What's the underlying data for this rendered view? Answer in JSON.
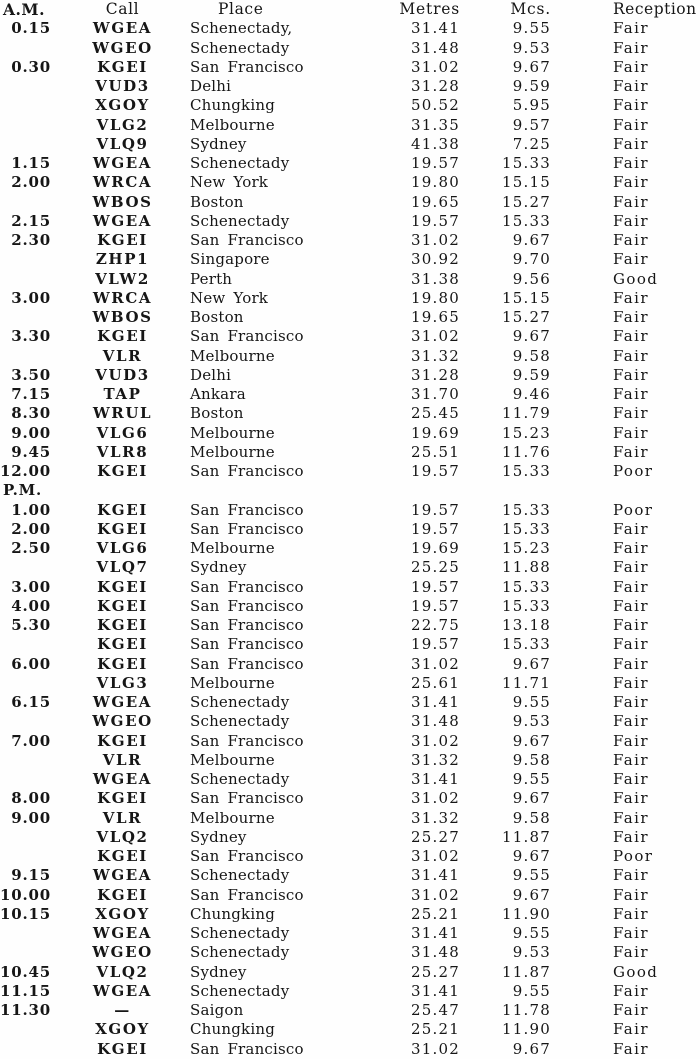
{
  "document": {
    "headers": {
      "time": "A.M.",
      "call": "Call",
      "place": "Place",
      "metres": "Metres",
      "mcs": "Mcs.",
      "reception": "Reception"
    },
    "sections": [
      {
        "label": "",
        "rows": [
          {
            "time": "0.15",
            "call": "WGEA",
            "place": "Schenectady,",
            "metres": "31.41",
            "mcs": "9.55",
            "reception": "Fair"
          },
          {
            "time": "",
            "call": "WGEO",
            "place": "Schenectady",
            "metres": "31.48",
            "mcs": "9.53",
            "reception": "Fair"
          },
          {
            "time": "0.30",
            "call": "KGEI",
            "place": "San Francisco",
            "metres": "31.02",
            "mcs": "9.67",
            "reception": "Fair"
          },
          {
            "time": "",
            "call": "VUD3",
            "place": "Delhi",
            "metres": "31.28",
            "mcs": "9.59",
            "reception": "Fair"
          },
          {
            "time": "",
            "call": "XGOY",
            "place": "Chungking",
            "metres": "50.52",
            "mcs": "5.95",
            "reception": "Fair"
          },
          {
            "time": "",
            "call": "VLG2",
            "place": "Melbourne",
            "metres": "31.35",
            "mcs": "9.57",
            "reception": "Fair"
          },
          {
            "time": "",
            "call": "VLQ9",
            "place": "Sydney",
            "metres": "41.38",
            "mcs": "7.25",
            "reception": "Fair"
          },
          {
            "time": "1.15",
            "call": "WGEA",
            "place": "Schenectady",
            "metres": "19.57",
            "mcs": "15.33",
            "reception": "Fair"
          },
          {
            "time": "2.00",
            "call": "WRCA",
            "place": "New York",
            "metres": "19.80",
            "mcs": "15.15",
            "reception": "Fair"
          },
          {
            "time": "",
            "call": "WBOS",
            "place": "Boston",
            "metres": "19.65",
            "mcs": "15.27",
            "reception": "Fair"
          },
          {
            "time": "2.15",
            "call": "WGEA",
            "place": "Schenectady",
            "metres": "19.57",
            "mcs": "15.33",
            "reception": "Fair"
          },
          {
            "time": "2.30",
            "call": "KGEI",
            "place": "San Francisco",
            "metres": "31.02",
            "mcs": "9.67",
            "reception": "Fair"
          },
          {
            "time": "",
            "call": "ZHP1",
            "place": "Singapore",
            "metres": "30.92",
            "mcs": "9.70",
            "reception": "Fair"
          },
          {
            "time": "",
            "call": "VLW2",
            "place": "Perth",
            "metres": "31.38",
            "mcs": "9.56",
            "reception": "Good"
          },
          {
            "time": "3.00",
            "call": "WRCA",
            "place": "New York",
            "metres": "19.80",
            "mcs": "15.15",
            "reception": "Fair"
          },
          {
            "time": "",
            "call": "WBOS",
            "place": "Boston",
            "metres": "19.65",
            "mcs": "15.27",
            "reception": "Fair"
          },
          {
            "time": "3.30",
            "call": "KGEI",
            "place": "San Francisco",
            "metres": "31.02",
            "mcs": "9.67",
            "reception": "Fair"
          },
          {
            "time": "",
            "call": "VLR",
            "place": "Melbourne",
            "metres": "31.32",
            "mcs": "9.58",
            "reception": "Fair"
          },
          {
            "time": "3.50",
            "call": "VUD3",
            "place": "Delhi",
            "metres": "31.28",
            "mcs": "9.59",
            "reception": "Fair"
          },
          {
            "time": "7.15",
            "call": "TAP",
            "place": "Ankara",
            "metres": "31.70",
            "mcs": "9.46",
            "reception": "Fair"
          },
          {
            "time": "8.30",
            "call": "WRUL",
            "place": "Boston",
            "metres": "25.45",
            "mcs": "11.79",
            "reception": "Fair"
          },
          {
            "time": "9.00",
            "call": "VLG6",
            "place": "Melbourne",
            "metres": "19.69",
            "mcs": "15.23",
            "reception": "Fair"
          },
          {
            "time": "9.45",
            "call": "VLR8",
            "place": "Melbourne",
            "metres": "25.51",
            "mcs": "11.76",
            "reception": "Fair"
          },
          {
            "time": "12.00",
            "call": "KGEI",
            "place": "San Francisco",
            "metres": "19.57",
            "mcs": "15.33",
            "reception": "Poor"
          }
        ]
      },
      {
        "label": "P.M.",
        "rows": [
          {
            "time": "1.00",
            "call": "KGEI",
            "place": "San Francisco",
            "metres": "19.57",
            "mcs": "15.33",
            "reception": "Poor"
          },
          {
            "time": "2.00",
            "call": "KGEI",
            "place": "San Francisco",
            "metres": "19.57",
            "mcs": "15.33",
            "reception": "Fair"
          },
          {
            "time": "2.50",
            "call": "VLG6",
            "place": "Melbourne",
            "metres": "19.69",
            "mcs": "15.23",
            "reception": "Fair"
          },
          {
            "time": "",
            "call": "VLQ7",
            "place": "Sydney",
            "metres": "25.25",
            "mcs": "11.88",
            "reception": "Fair"
          },
          {
            "time": "3.00",
            "call": "KGEI",
            "place": "San Francisco",
            "metres": "19.57",
            "mcs": "15.33",
            "reception": "Fair"
          },
          {
            "time": "4.00",
            "call": "KGEI",
            "place": "San Francisco",
            "metres": "19.57",
            "mcs": "15.33",
            "reception": "Fair"
          },
          {
            "time": "5.30",
            "call": "KGEI",
            "place": "San Francisco",
            "metres": "22.75",
            "mcs": "13.18",
            "reception": "Fair"
          },
          {
            "time": "",
            "call": "KGEI",
            "place": "San Francisco",
            "metres": "19.57",
            "mcs": "15.33",
            "reception": "Fair"
          },
          {
            "time": "6.00",
            "call": "KGEI",
            "place": "San Francisco",
            "metres": "31.02",
            "mcs": "9.67",
            "reception": "Fair"
          },
          {
            "time": "",
            "call": "VLG3",
            "place": "Melbourne",
            "metres": "25.61",
            "mcs": "11.71",
            "reception": "Fair"
          },
          {
            "time": "6.15",
            "call": "WGEA",
            "place": "Schenectady",
            "metres": "31.41",
            "mcs": "9.55",
            "reception": "Fair"
          },
          {
            "time": "",
            "call": "WGEO",
            "place": "Schenectady",
            "metres": "31.48",
            "mcs": "9.53",
            "reception": "Fair"
          },
          {
            "time": "7.00",
            "call": "KGEI",
            "place": "San Francisco",
            "metres": "31.02",
            "mcs": "9.67",
            "reception": "Fair"
          },
          {
            "time": "",
            "call": "VLR",
            "place": "Melbourne",
            "metres": "31.32",
            "mcs": "9.58",
            "reception": "Fair"
          },
          {
            "time": "",
            "call": "WGEA",
            "place": "Schenectady",
            "metres": "31.41",
            "mcs": "9.55",
            "reception": "Fair"
          },
          {
            "time": "8.00",
            "call": "KGEI",
            "place": "San Francisco",
            "metres": "31.02",
            "mcs": "9.67",
            "reception": "Fair"
          },
          {
            "time": "9.00",
            "call": "VLR",
            "place": "Melbourne",
            "metres": "31.32",
            "mcs": "9.58",
            "reception": "Fair"
          },
          {
            "time": "",
            "call": "VLQ2",
            "place": "Sydney",
            "metres": "25.27",
            "mcs": "11.87",
            "reception": "Fair"
          },
          {
            "time": "",
            "call": "KGEI",
            "place": "San Francisco",
            "metres": "31.02",
            "mcs": "9.67",
            "reception": "Poor"
          },
          {
            "time": "9.15",
            "call": "WGEA",
            "place": "Schenectady",
            "metres": "31.41",
            "mcs": "9.55",
            "reception": "Fair"
          },
          {
            "time": "10.00",
            "call": "KGEI",
            "place": "San Francisco",
            "metres": "31.02",
            "mcs": "9.67",
            "reception": "Fair"
          },
          {
            "time": "10.15",
            "call": "XGOY",
            "place": "Chungking",
            "metres": "25.21",
            "mcs": "11.90",
            "reception": "Fair"
          },
          {
            "time": "",
            "call": "WGEA",
            "place": "Schenectady",
            "metres": "31.41",
            "mcs": "9.55",
            "reception": "Fair"
          },
          {
            "time": "",
            "call": "WGEO",
            "place": "Schenectady",
            "metres": "31.48",
            "mcs": "9.53",
            "reception": "Fair"
          },
          {
            "time": "10.45",
            "call": "VLQ2",
            "place": "Sydney",
            "metres": "25.27",
            "mcs": "11.87",
            "reception": "Good"
          },
          {
            "time": "11.15",
            "call": "WGEA",
            "place": "Schenectady",
            "metres": "31.41",
            "mcs": "9.55",
            "reception": "Fair"
          },
          {
            "time": "11.30",
            "call": "—",
            "place": "Saigon",
            "metres": "25.47",
            "mcs": "11.78",
            "reception": "Fair"
          },
          {
            "time": "",
            "call": "XGOY",
            "place": "Chungking",
            "metres": "25.21",
            "mcs": "11.90",
            "reception": "Fair"
          },
          {
            "time": "",
            "call": "KGEI",
            "place": "San Francisco",
            "metres": "31.02",
            "mcs": "9.67",
            "reception": "Fair"
          }
        ]
      }
    ]
  }
}
